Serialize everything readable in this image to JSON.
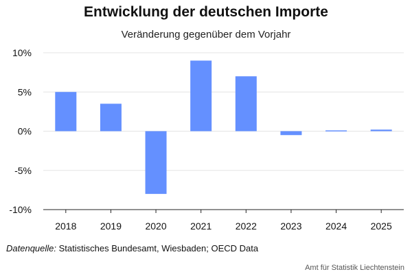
{
  "chart_data": {
    "type": "bar",
    "title": "Entwicklung der deutschen Importe",
    "subtitle": "Veränderung gegenüber dem Vorjahr",
    "categories": [
      "2018",
      "2019",
      "2020",
      "2021",
      "2022",
      "2023",
      "2024",
      "2025"
    ],
    "values": [
      5.0,
      3.5,
      -8.0,
      9.0,
      7.0,
      -0.5,
      0.1,
      0.2
    ],
    "unit": "%",
    "ylim": [
      -10,
      10
    ],
    "yticks": [
      10,
      5,
      0,
      -5,
      -10
    ],
    "ytick_labels": [
      "10%",
      "5%",
      "0%",
      "-5%",
      "-10%"
    ],
    "xlabel": "",
    "ylabel": "",
    "grid": true,
    "bar_color": "#6490ff"
  },
  "source": {
    "label": "Datenquelle:",
    "text": "Statistisches Bundesamt, Wiesbaden; OECD Data"
  },
  "publisher": "Amt für Statistik Liechtenstein"
}
